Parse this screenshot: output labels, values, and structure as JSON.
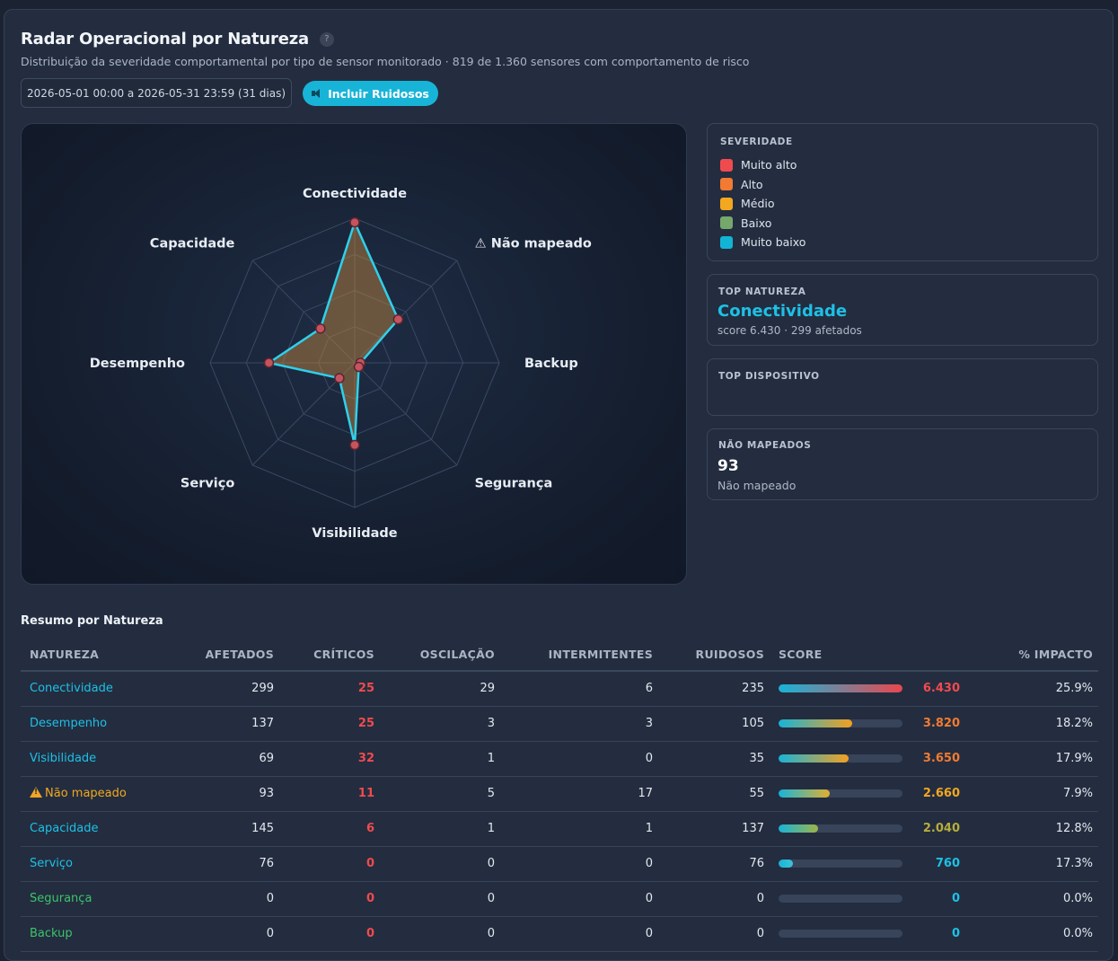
{
  "header": {
    "title": "Radar Operacional por Natureza",
    "help": "?",
    "subtitle": "Distribuição da severidade comportamental por tipo de sensor monitorado · 819 de 1.360 sensores com comportamento de risco",
    "date_range": "2026-05-01 00:00 a 2026-05-31 23:59 (31 dias)",
    "noise_button": "Incluir Ruidosos"
  },
  "radar": {
    "axes": [
      "Conectividade",
      "⚠ Não mapeado",
      "Backup",
      "Segurança",
      "Visibilidade",
      "Serviço",
      "Desempenho",
      "Capacidade"
    ],
    "values": [
      6430,
      2660,
      0,
      0,
      3650,
      760,
      3820,
      2040
    ],
    "max": 6430,
    "line_color": "#2fd0ec",
    "fill_color": "#c98a3c",
    "point_color": "#c4545e"
  },
  "legend": {
    "title": "SEVERIDADE",
    "items": [
      {
        "label": "Muito alto",
        "color": "#ef4b4f"
      },
      {
        "label": "Alto",
        "color": "#f27a32"
      },
      {
        "label": "Médio",
        "color": "#f3a820"
      },
      {
        "label": "Baixo",
        "color": "#76a86b"
      },
      {
        "label": "Muito baixo",
        "color": "#12b4d6"
      }
    ]
  },
  "top_natureza": {
    "title": "TOP NATUREZA",
    "name": "Conectividade",
    "detail": "score 6.430 · 299 afetados"
  },
  "top_dispositivo": {
    "title": "TOP DISPOSITIVO"
  },
  "nao_mapeados": {
    "title": "NÃO MAPEADOS",
    "count": "93",
    "label": "Não mapeado"
  },
  "summary": {
    "title": "Resumo por Natureza",
    "columns": [
      "NATUREZA",
      "AFETADOS",
      "CRÍTICOS",
      "OSCILAÇÃO",
      "INTERMITENTES",
      "RUIDOSOS",
      "SCORE",
      "% IMPACTO"
    ],
    "rows": [
      {
        "natureza": "Conectividade",
        "warn": false,
        "afetados": "299",
        "criticos": "25",
        "oscilacao": "29",
        "intermitentes": "6",
        "ruidosos": "235",
        "score": "6.430",
        "score_fraction": 1.0,
        "impacto": "25.9%",
        "name_color": "#1ec0e6",
        "crit_color": "#ef4b4f",
        "score_color": "#ef4b4f",
        "bar_gradient": "linear-gradient(90deg,#18b4d8,#e9474e)"
      },
      {
        "natureza": "Desempenho",
        "warn": false,
        "afetados": "137",
        "criticos": "25",
        "oscilacao": "3",
        "intermitentes": "3",
        "ruidosos": "105",
        "score": "3.820",
        "score_fraction": 0.594,
        "impacto": "18.2%",
        "name_color": "#1ec0e6",
        "crit_color": "#ef4b4f",
        "score_color": "#f27a32",
        "bar_gradient": "linear-gradient(90deg,#18b4d8,#f3a020)"
      },
      {
        "natureza": "Visibilidade",
        "warn": false,
        "afetados": "69",
        "criticos": "32",
        "oscilacao": "1",
        "intermitentes": "0",
        "ruidosos": "35",
        "score": "3.650",
        "score_fraction": 0.568,
        "impacto": "17.9%",
        "name_color": "#1ec0e6",
        "crit_color": "#ef4b4f",
        "score_color": "#f27a32",
        "bar_gradient": "linear-gradient(90deg,#18b4d8,#f3a020)"
      },
      {
        "natureza": "Não mapeado",
        "warn": true,
        "afetados": "93",
        "criticos": "11",
        "oscilacao": "5",
        "intermitentes": "17",
        "ruidosos": "55",
        "score": "2.660",
        "score_fraction": 0.414,
        "impacto": "7.9%",
        "name_color": "#f3a820",
        "crit_color": "#ef4b4f",
        "score_color": "#f3a820",
        "bar_gradient": "linear-gradient(90deg,#18b4d8,#e0b030)"
      },
      {
        "natureza": "Capacidade",
        "warn": false,
        "afetados": "145",
        "criticos": "6",
        "oscilacao": "1",
        "intermitentes": "1",
        "ruidosos": "137",
        "score": "2.040",
        "score_fraction": 0.317,
        "impacto": "12.8%",
        "name_color": "#1ec0e6",
        "crit_color": "#ef4b4f",
        "score_color": "#b7ad3c",
        "bar_gradient": "linear-gradient(90deg,#18b4d8,#9db548)"
      },
      {
        "natureza": "Serviço",
        "warn": false,
        "afetados": "76",
        "criticos": "0",
        "oscilacao": "0",
        "intermitentes": "0",
        "ruidosos": "76",
        "score": "760",
        "score_fraction": 0.118,
        "impacto": "17.3%",
        "name_color": "#1ec0e6",
        "crit_color": "#ef4b4f",
        "score_color": "#1ec0e6",
        "bar_gradient": "linear-gradient(90deg,#18b4d8,#3cc4d8)"
      },
      {
        "natureza": "Segurança",
        "warn": false,
        "afetados": "0",
        "criticos": "0",
        "oscilacao": "0",
        "intermitentes": "0",
        "ruidosos": "0",
        "score": "0",
        "score_fraction": 0,
        "impacto": "0.0%",
        "name_color": "#3cc36a",
        "crit_color": "#ef4b4f",
        "score_color": "#1ec0e6",
        "bar_gradient": "linear-gradient(90deg,#18b4d8,#18b4d8)"
      },
      {
        "natureza": "Backup",
        "warn": false,
        "afetados": "0",
        "criticos": "0",
        "oscilacao": "0",
        "intermitentes": "0",
        "ruidosos": "0",
        "score": "0",
        "score_fraction": 0,
        "impacto": "0.0%",
        "name_color": "#3cc36a",
        "crit_color": "#ef4b4f",
        "score_color": "#1ec0e6",
        "bar_gradient": "linear-gradient(90deg,#18b4d8,#18b4d8)"
      }
    ]
  }
}
